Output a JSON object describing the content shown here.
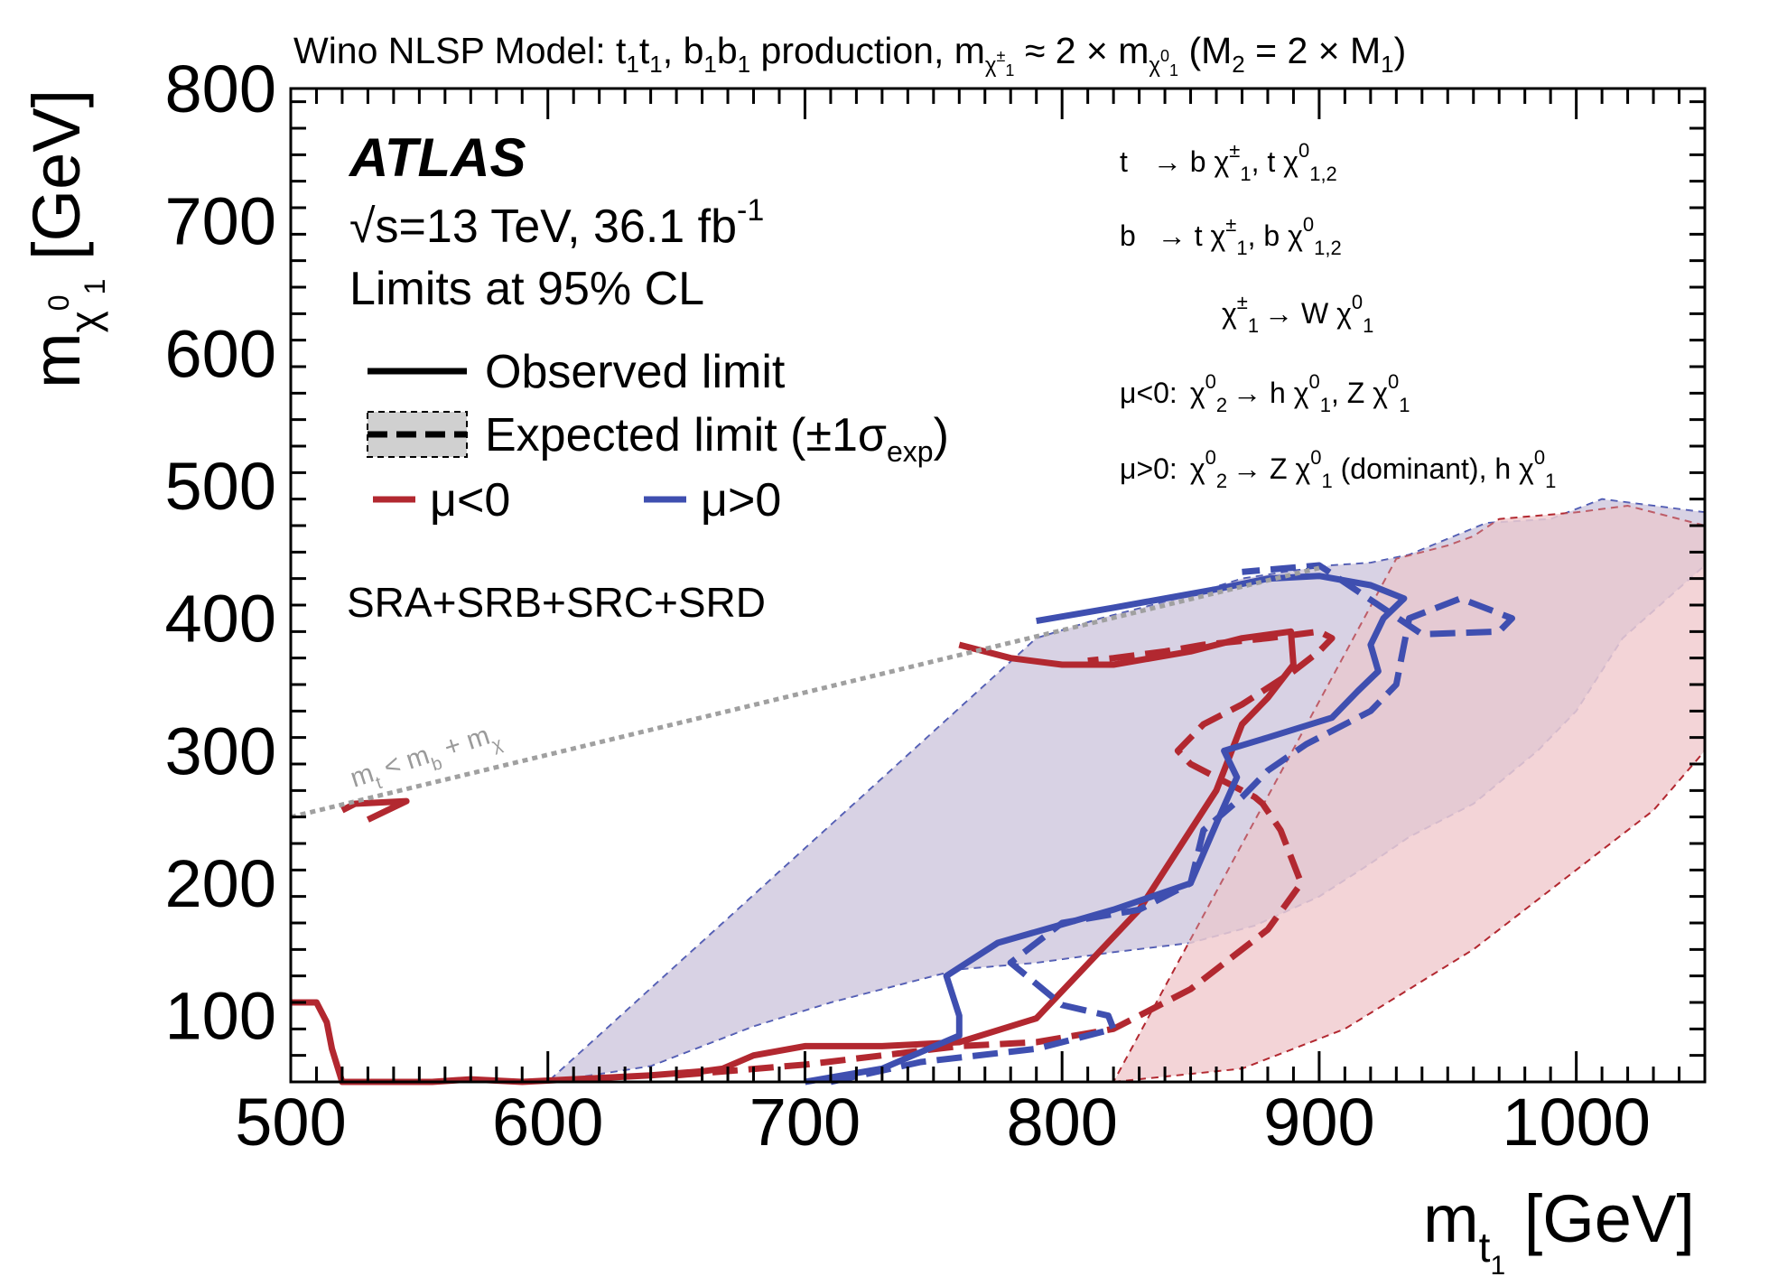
{
  "colors": {
    "red": "#b22830",
    "blue": "#3f4fb0",
    "red_band": "#f1cdd0",
    "blue_band": "#d3d6ec",
    "overlap_band": "#d4c0d0",
    "kinematic": "#a0a0a0"
  },
  "chart_data": {
    "type": "area",
    "title": "Wino NLSP Model: t̃₁t̃₁, b̃₁b̃₁ production, m(χ̃±₁) ≈ 2 × m(χ̃⁰₁) (M₂ = 2 × M₁)",
    "xlabel": "m t̃1 [GeV]",
    "ylabel": "m χ̃0 1 [GeV]",
    "xlim": [
      500,
      1050
    ],
    "ylim": [
      50,
      800
    ],
    "xticks": [
      500,
      600,
      700,
      800,
      900,
      1000
    ],
    "yticks": [
      100,
      200,
      300,
      400,
      500,
      600,
      700,
      800
    ],
    "grid": false,
    "legend_position": "top-left",
    "series": [
      {
        "name": "Expected ±1σ band (μ>0)",
        "style": "band-blue",
        "x": [
          600,
          640,
          680,
          710,
          740,
          760,
          790,
          820,
          850,
          875,
          900,
          920,
          935,
          960,
          985,
          1000,
          1018,
          1050,
          1050,
          1010,
          990,
          965,
          950,
          935,
          920,
          905,
          890,
          870,
          845,
          815,
          790
        ],
        "y": [
          50,
          62,
          92,
          110,
          125,
          135,
          140,
          148,
          155,
          168,
          190,
          215,
          235,
          260,
          300,
          330,
          385,
          440,
          480,
          490,
          475,
          472,
          460,
          448,
          442,
          440,
          436,
          430,
          415,
          400,
          385
        ]
      },
      {
        "name": "Expected ±1σ band (μ<0)",
        "style": "band-red",
        "x": [
          820,
          870,
          910,
          960,
          1000,
          1030,
          1050,
          1050,
          1020,
          1000,
          970,
          960,
          950,
          930
        ],
        "y": [
          50,
          60,
          90,
          150,
          210,
          255,
          300,
          470,
          485,
          480,
          475,
          462,
          455,
          445
        ]
      },
      {
        "name": "Observed limit μ<0",
        "style": "red-solid",
        "x": [
          500,
          510,
          514,
          516,
          520,
          525,
          555,
          570,
          590,
          640,
          660,
          668,
          680,
          700,
          730,
          760,
          790,
          830,
          850,
          860,
          870,
          880,
          890,
          889,
          870,
          850,
          820,
          800,
          780,
          760
        ],
        "y": [
          110,
          110,
          95,
          75,
          50,
          50,
          50,
          52,
          50,
          55,
          58,
          60,
          70,
          77,
          77,
          80,
          98,
          180,
          240,
          270,
          320,
          340,
          365,
          390,
          385,
          375,
          365,
          365,
          370,
          380
        ]
      },
      {
        "name": "Expected limit μ<0",
        "style": "red-dash",
        "x": [
          650,
          700,
          730,
          760,
          790,
          820,
          850,
          880,
          893,
          885,
          878,
          875,
          860,
          850,
          845,
          855,
          870,
          890,
          900,
          905,
          900,
          880,
          855,
          840,
          820,
          810
        ],
        "y": [
          55,
          63,
          70,
          77,
          80,
          90,
          120,
          165,
          200,
          240,
          260,
          265,
          280,
          290,
          300,
          320,
          335,
          360,
          375,
          385,
          390,
          385,
          380,
          375,
          370,
          368
        ]
      },
      {
        "name": "Observed limit μ>0",
        "style": "blue-solid",
        "x": [
          700,
          730,
          760,
          760,
          755,
          775,
          820,
          850,
          860,
          868,
          863,
          880,
          905,
          915,
          923,
          920,
          925,
          933,
          920,
          900,
          880,
          860,
          840,
          820,
          790
        ],
        "y": [
          50,
          60,
          85,
          100,
          130,
          155,
          180,
          200,
          245,
          280,
          300,
          310,
          325,
          345,
          360,
          380,
          400,
          415,
          425,
          432,
          430,
          422,
          415,
          408,
          398
        ]
      },
      {
        "name": "Expected limit μ>0",
        "style": "blue-dash",
        "x": [
          710,
          745,
          790,
          820,
          818,
          800,
          780,
          800,
          830,
          850,
          855,
          870,
          880,
          895,
          920,
          930,
          935,
          955,
          975,
          970,
          940,
          900,
          870
        ],
        "y": [
          50,
          65,
          75,
          90,
          100,
          108,
          140,
          170,
          180,
          200,
          240,
          265,
          285,
          305,
          330,
          350,
          400,
          415,
          400,
          390,
          388,
          440,
          435
        ]
      },
      {
        "name": "Low-mass observed island μ<0",
        "style": "red-solid",
        "x": [
          520,
          525,
          545,
          530
        ],
        "y": [
          255,
          260,
          262,
          248
        ]
      },
      {
        "name": "Kinematic limit",
        "style": "kinematic",
        "x": [
          500,
          900
        ],
        "y": [
          250,
          438
        ]
      }
    ]
  },
  "header": {
    "title_prefix": "Wino NLSP Model: ",
    "stop": "t",
    "sbottom": "b",
    "tilde": "~",
    "sub1": "1",
    "sep": ", ",
    "production": " production, m",
    "approx": " ≈ 2 × m",
    "chi_pm": "χ",
    "pm": "±",
    "zero": "0",
    "param": " (M",
    "sub2": "2",
    "eq": " = 2 × M",
    "close": ")"
  },
  "atlas": {
    "label": "ATLAS",
    "energy_prefix": "√s=13 TeV, 36.1 fb",
    "energy_exp": "-1",
    "cl": "Limits at 95% CL"
  },
  "legend": {
    "observed": "Observed limit",
    "expected_prefix": "Expected limit (±1σ",
    "expected_sub": "exp",
    "expected_suffix": ")",
    "mu_neg": "μ<0",
    "mu_pos": "μ>0"
  },
  "signal_regions": "SRA+SRB+SRC+SRD",
  "decays": {
    "l1_parent": "t",
    "l1_text": "→  b χ",
    "l1_tail": ", t χ",
    "l2_parent": "b",
    "l2_text": "→  t χ",
    "l2_tail": ", b χ",
    "l3_text": "χ",
    "l3_arrow": "→ W χ",
    "l4_cond": "μ<0:",
    "l4_text": "χ",
    "l4_arrow": "→ h χ",
    "l4_tail": ", Z χ",
    "l5_cond": "μ>0:",
    "l5_text": "χ",
    "l5_arrow": "→ Z χ",
    "l5_mid": " (dominant), h χ",
    "sup_pm": "±",
    "sup_0": "0",
    "tilde": "~",
    "sub_1": "1",
    "sub_2": "2",
    "sub_12": "1,2"
  },
  "kinematic_label": {
    "m": "m",
    "lt": " < m",
    "b": "b",
    "plus": " + m",
    "t": "t",
    "chi": "χ"
  },
  "axes": {
    "x_label_m": "m",
    "x_label_sub": "t",
    "x_label_subsub": "1",
    "x_label_tilde": "~",
    "x_label_unit": "[GeV]",
    "y_label_m": "m",
    "y_label_chi": "χ",
    "y_label_sup": "0",
    "y_label_sub": "1",
    "y_label_tilde": "~",
    "y_label_unit": "[GeV]"
  }
}
